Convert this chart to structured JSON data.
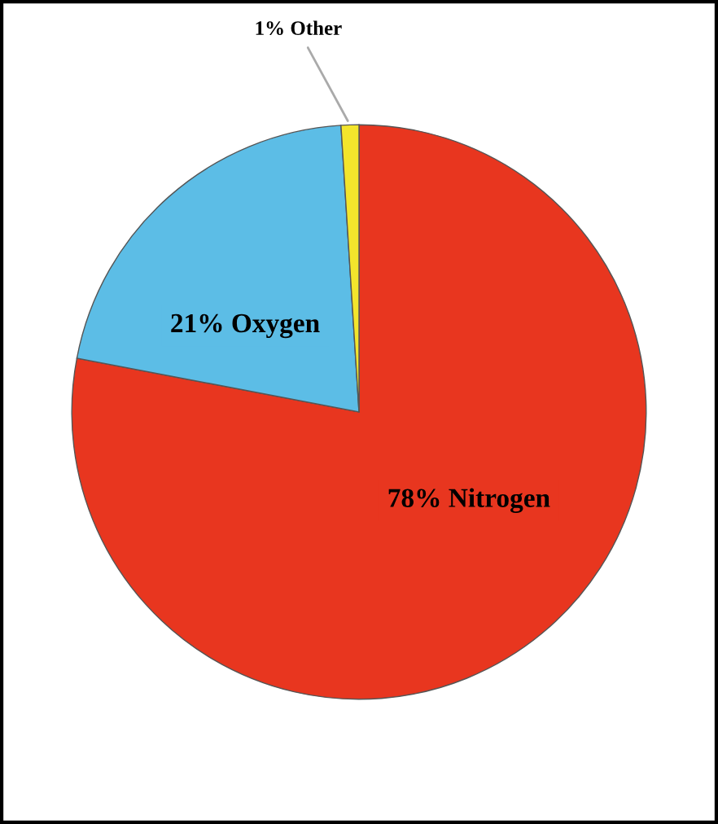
{
  "chart_data": {
    "type": "pie",
    "categories": [
      "78% Nitrogen",
      "21% Oxygen",
      "1% Other"
    ],
    "values": [
      78,
      21,
      1
    ],
    "colors": [
      "#e8361f",
      "#5cbde6",
      "#f3e52c"
    ]
  }
}
